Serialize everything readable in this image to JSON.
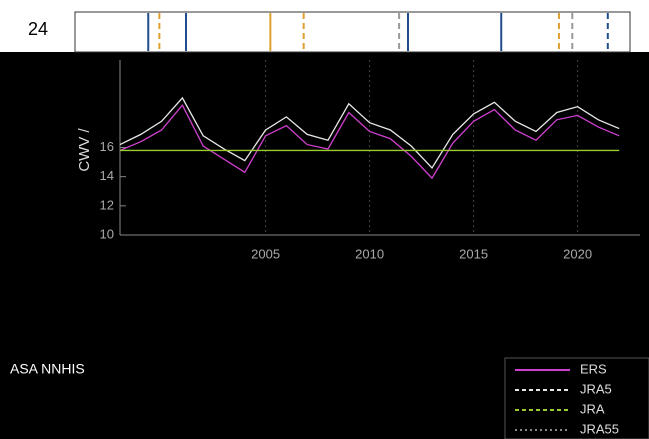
{
  "chart_data": {
    "type": "line",
    "top_label": "24",
    "y_label": "CWV /",
    "left_note": "ASA NNHIS",
    "x": [
      1998,
      1999,
      2000,
      2001,
      2002,
      2003,
      2004,
      2005,
      2006,
      2007,
      2008,
      2009,
      2010,
      2011,
      2012,
      2013,
      2014,
      2015,
      2016,
      2017,
      2018,
      2019,
      2020,
      2021,
      2022
    ],
    "xlim": [
      1998,
      2023
    ],
    "xticks": [
      2005,
      2010,
      2015,
      2020
    ],
    "ylim": [
      10,
      22
    ],
    "yticks": [
      10,
      12,
      14,
      16
    ],
    "markers": [
      {
        "x": 2001.3,
        "color": "#1f4e8c",
        "dashed": false
      },
      {
        "x": 2001.8,
        "color": "#e0a030",
        "dashed": true
      },
      {
        "x": 2003.0,
        "color": "#1f4e8c",
        "dashed": false
      },
      {
        "x": 2006.8,
        "color": "#e0a030",
        "dashed": false
      },
      {
        "x": 2008.3,
        "color": "#e0a030",
        "dashed": true
      },
      {
        "x": 2013.0,
        "color": "#1f4e8c",
        "dashed": false
      },
      {
        "x": 2017.2,
        "color": "#1f4e8c",
        "dashed": false
      },
      {
        "x": 2012.6,
        "color": "#999999",
        "dashed": true
      },
      {
        "x": 2019.8,
        "color": "#e0a030",
        "dashed": true
      },
      {
        "x": 2020.4,
        "color": "#999999",
        "dashed": true
      },
      {
        "x": 2022.0,
        "color": "#1f4e8c",
        "dashed": true
      }
    ],
    "series": [
      {
        "name": "ERS",
        "color": "#d040d0",
        "dashed": false,
        "values": [
          15.8,
          16.4,
          17.2,
          18.9,
          16.1,
          15.2,
          14.3,
          16.8,
          17.5,
          16.2,
          15.9,
          18.4,
          17.1,
          16.6,
          15.4,
          13.9,
          16.3,
          17.8,
          18.6,
          17.2,
          16.5,
          17.9,
          18.2,
          17.4,
          16.8
        ]
      },
      {
        "name": "JRA5",
        "color": "#e8e8e8",
        "dashed": true,
        "values": [
          16.2,
          16.9,
          17.8,
          19.4,
          16.8,
          15.9,
          15.1,
          17.2,
          18.1,
          16.9,
          16.5,
          19.0,
          17.7,
          17.2,
          16.1,
          14.6,
          16.9,
          18.3,
          19.1,
          17.8,
          17.1,
          18.4,
          18.8,
          17.9,
          17.3
        ]
      },
      {
        "name": "JRA",
        "color": "#9acd32",
        "dashed": true,
        "values": [
          15.8,
          15.8,
          15.8,
          15.8,
          15.8,
          15.8,
          15.8,
          15.8,
          15.8,
          15.8,
          15.8,
          15.8,
          15.8,
          15.8,
          15.8,
          15.8,
          15.8,
          15.8,
          15.8,
          15.8,
          15.8,
          15.8,
          15.8,
          15.8,
          15.8
        ]
      }
    ],
    "legend_extra": "JRA55"
  }
}
